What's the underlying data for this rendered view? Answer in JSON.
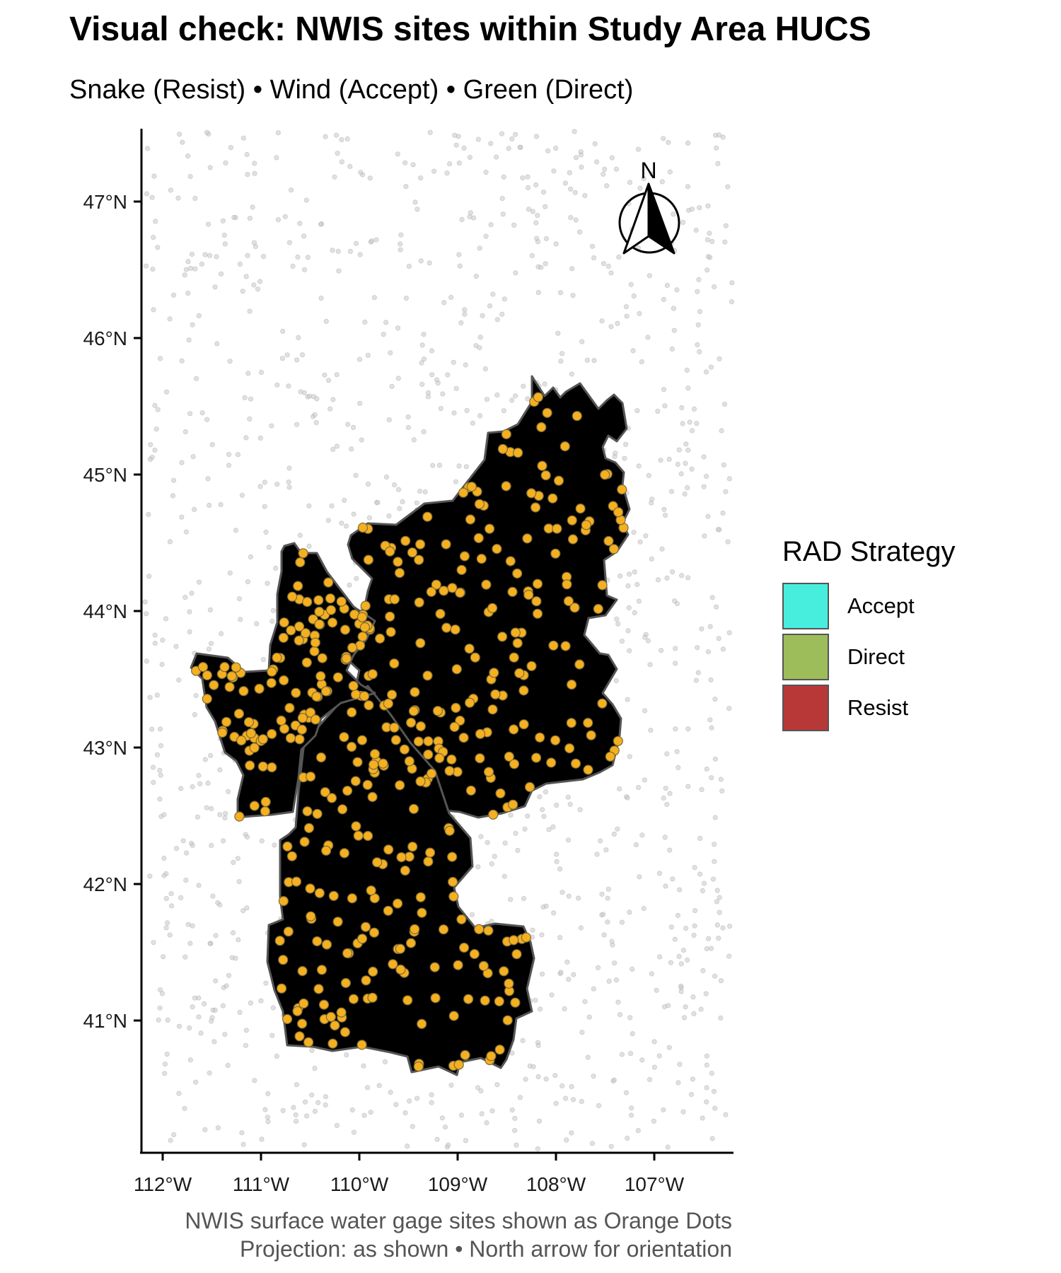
{
  "title": "Visual check: NWIS sites within Study Area HUCS",
  "subtitle": "Snake (Resist) • Wind (Accept) • Green (Direct)",
  "map": {
    "x_ticks": [
      "112°W",
      "111°W",
      "110°W",
      "109°W",
      "108°W",
      "107°W"
    ],
    "y_ticks": [
      "47°N",
      "46°N",
      "45°N",
      "44°N",
      "43°N",
      "42°N",
      "41°N"
    ],
    "x_tick_values": [
      -112,
      -111,
      -110,
      -109,
      -108,
      -107
    ],
    "y_tick_values": [
      47,
      46,
      45,
      44,
      43,
      42,
      41
    ],
    "lon_range": [
      -112.25,
      -106.2
    ],
    "lat_range": [
      40.0,
      47.5
    ],
    "north_arrow_label": "N",
    "site_color": "#F5B020",
    "background_site_color": "#c8c8c8"
  },
  "regions": [
    {
      "strategy": "Accept",
      "basin": "Wind",
      "color": "#48EEDD"
    },
    {
      "strategy": "Direct",
      "basin": "Green",
      "color": "#9DBD5A"
    },
    {
      "strategy": "Resist",
      "basin": "Snake",
      "color": "#B83838"
    }
  ],
  "legend": {
    "title": "RAD Strategy",
    "items": [
      {
        "label": "Accept",
        "color": "#48EEDD"
      },
      {
        "label": "Direct",
        "color": "#9DBD5A"
      },
      {
        "label": "Resist",
        "color": "#B83838"
      }
    ]
  },
  "caption": {
    "line1": "NWIS surface water gage sites shown as Orange Dots",
    "line2": "Projection: as shown • North arrow for orientation"
  }
}
